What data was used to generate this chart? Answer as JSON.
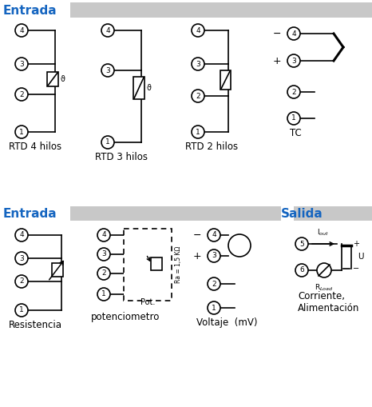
{
  "bg_color": "#ffffff",
  "header_blue": "#1565C0",
  "header_gray": "#c8c8c8",
  "line_color": "#000000",
  "entrada_text": "Entrada",
  "salida_text": "Salida",
  "row1_labels": [
    "RTD 4 hilos",
    "RTD 3 hilos",
    "RTD 2 hilos",
    "TC"
  ],
  "row2_labels": [
    "Resistencia",
    "potenciometro",
    "Voltaje  (mV)",
    "Corriente,\nAlimentación"
  ],
  "fig_w": 4.66,
  "fig_h": 5.09,
  "dpi": 100
}
